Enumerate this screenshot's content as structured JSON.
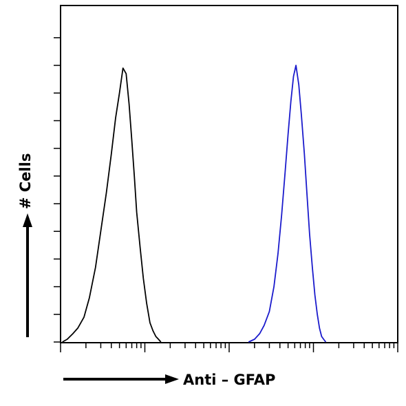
{
  "chart_data": {
    "type": "line",
    "title": "",
    "xlabel": "Anti – GFAP",
    "ylabel": "# Cells",
    "x_scale": "log",
    "xlim": [
      1,
      10000
    ],
    "ylim": [
      0,
      100
    ],
    "grid": false,
    "legend": "none",
    "series": [
      {
        "color": "#000000",
        "x": [
          1.05,
          1.2,
          1.4,
          1.6,
          1.9,
          2.2,
          2.6,
          3.0,
          3.5,
          4.0,
          4.5,
          5.0,
          5.5,
          6.0,
          6.5,
          7.0,
          7.5,
          8.0,
          8.8,
          9.6,
          10.5,
          11.5,
          12.5,
          13.5,
          14.5,
          15.5
        ],
        "y": [
          0,
          1,
          3,
          5,
          9,
          16,
          27,
          40,
          54,
          68,
          81,
          90,
          99,
          97,
          86,
          73,
          60,
          47,
          34,
          23,
          14,
          7,
          4,
          2,
          1,
          0
        ]
      },
      {
        "color": "#1a1acc",
        "x": [
          170,
          200,
          230,
          260,
          300,
          340,
          380,
          420,
          460,
          500,
          540,
          580,
          620,
          670,
          720,
          780,
          840,
          900,
          970,
          1040,
          1110,
          1180,
          1250,
          1320,
          1400
        ],
        "y": [
          0,
          1,
          3,
          6,
          11,
          20,
          32,
          46,
          61,
          75,
          87,
          96,
          100,
          93,
          82,
          68,
          53,
          39,
          27,
          17,
          10,
          5,
          2,
          1,
          0
        ]
      }
    ]
  }
}
